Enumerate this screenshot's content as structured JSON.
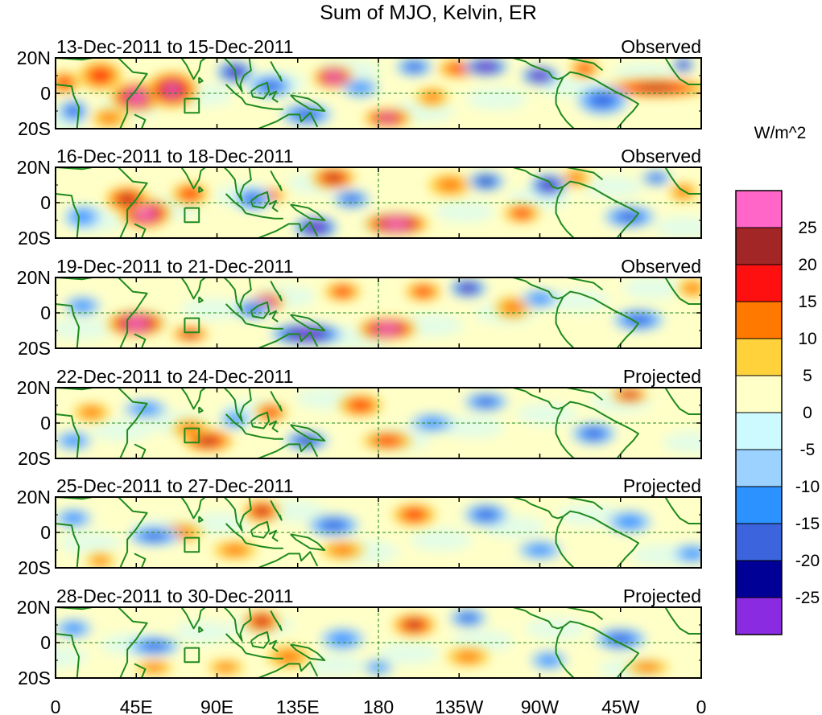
{
  "chart_data": {
    "type": "heatmap",
    "title": "Sum of MJO, Kelvin, ER",
    "units_label": "W/m^2",
    "x_ticks": [
      "0",
      "45E",
      "90E",
      "135E",
      "180",
      "135W",
      "90W",
      "45W",
      "0"
    ],
    "y_ticks": [
      "20N",
      "0",
      "20S"
    ],
    "x_range_deg": [
      0,
      360
    ],
    "y_range_deg": [
      -20,
      20
    ],
    "colorbar": {
      "levels": [
        -25,
        -20,
        -15,
        -10,
        -5,
        0,
        5,
        10,
        15,
        20,
        25
      ],
      "labels": [
        "25",
        "20",
        "15",
        "10",
        "5",
        "0",
        "-5",
        "-10",
        "-15",
        "-20",
        "-25"
      ],
      "colors": [
        "#ff66c8",
        "#a32626",
        "#ff1010",
        "#ff7800",
        "#ffd23c",
        "#ffffc8",
        "#cdfaff",
        "#9bd2ff",
        "#2b92ff",
        "#3c64dc",
        "#000096",
        "#8a2be2"
      ]
    },
    "panels": [
      {
        "date_label": "13-Dec-2011 to 15-Dec-2011",
        "kind": "Observed",
        "anomalies": [
          {
            "lon": 45,
            "lat": -2,
            "rlon": 14,
            "rlat": 8,
            "value": 30
          },
          {
            "lon": 65,
            "lat": 2,
            "rlon": 14,
            "rlat": 10,
            "value": 22
          },
          {
            "lon": 25,
            "lat": 10,
            "rlon": 12,
            "rlat": 8,
            "value": 12
          },
          {
            "lon": 5,
            "lat": 6,
            "rlon": 8,
            "rlat": 6,
            "value": 14
          },
          {
            "lon": 30,
            "lat": -14,
            "rlon": 10,
            "rlat": 5,
            "value": 10
          },
          {
            "lon": 155,
            "lat": 9,
            "rlon": 11,
            "rlat": 6,
            "value": 26
          },
          {
            "lon": 185,
            "lat": -14,
            "rlon": 13,
            "rlat": 5,
            "value": 24
          },
          {
            "lon": 210,
            "lat": -2,
            "rlon": 9,
            "rlat": 5,
            "value": 10
          },
          {
            "lon": 225,
            "lat": 14,
            "rlon": 12,
            "rlat": 5,
            "value": 12
          },
          {
            "lon": 335,
            "lat": 3,
            "rlon": 30,
            "rlat": 5,
            "value": 18
          },
          {
            "lon": 295,
            "lat": 14,
            "rlon": 8,
            "rlat": 5,
            "value": 15
          },
          {
            "lon": 100,
            "lat": 12,
            "rlon": 10,
            "rlat": 6,
            "value": -22
          },
          {
            "lon": 120,
            "lat": 4,
            "rlon": 12,
            "rlat": 6,
            "value": -15
          },
          {
            "lon": 140,
            "lat": -12,
            "rlon": 14,
            "rlat": 6,
            "value": -12
          },
          {
            "lon": 200,
            "lat": 15,
            "rlon": 10,
            "rlat": 5,
            "value": -12
          },
          {
            "lon": 240,
            "lat": 15,
            "rlon": 12,
            "rlat": 5,
            "value": -30
          },
          {
            "lon": 270,
            "lat": 10,
            "rlon": 10,
            "rlat": 5,
            "value": -28
          },
          {
            "lon": 305,
            "lat": -4,
            "rlon": 14,
            "rlat": 8,
            "value": -12
          },
          {
            "lon": 10,
            "lat": -10,
            "rlon": 8,
            "rlat": 6,
            "value": -12
          },
          {
            "lon": 350,
            "lat": 16,
            "rlon": 6,
            "rlat": 4,
            "value": -22
          },
          {
            "lon": 170,
            "lat": 3,
            "rlon": 10,
            "rlat": 5,
            "value": -8
          }
        ]
      },
      {
        "date_label": "16-Dec-2011 to 18-Dec-2011",
        "kind": "Observed",
        "anomalies": [
          {
            "lon": 50,
            "lat": -6,
            "rlon": 14,
            "rlat": 8,
            "value": 30
          },
          {
            "lon": 40,
            "lat": 2,
            "rlon": 12,
            "rlat": 7,
            "value": 18
          },
          {
            "lon": 75,
            "lat": 5,
            "rlon": 10,
            "rlat": 6,
            "value": 12
          },
          {
            "lon": 190,
            "lat": -12,
            "rlon": 18,
            "rlat": 6,
            "value": 30
          },
          {
            "lon": 155,
            "lat": 14,
            "rlon": 12,
            "rlat": 6,
            "value": 16
          },
          {
            "lon": 120,
            "lat": 4,
            "rlon": 8,
            "rlat": 4,
            "value": 14
          },
          {
            "lon": 220,
            "lat": 10,
            "rlon": 12,
            "rlat": 6,
            "value": 8
          },
          {
            "lon": 260,
            "lat": -6,
            "rlon": 10,
            "rlat": 5,
            "value": 12
          },
          {
            "lon": 290,
            "lat": 14,
            "rlon": 8,
            "rlat": 5,
            "value": 10
          },
          {
            "lon": 350,
            "lat": 6,
            "rlon": 8,
            "rlat": 5,
            "value": 10
          },
          {
            "lon": 145,
            "lat": -14,
            "rlon": 12,
            "rlat": 6,
            "value": -30
          },
          {
            "lon": 110,
            "lat": 2,
            "rlon": 10,
            "rlat": 6,
            "value": -14
          },
          {
            "lon": 165,
            "lat": 2,
            "rlon": 10,
            "rlat": 5,
            "value": -12
          },
          {
            "lon": 240,
            "lat": 12,
            "rlon": 10,
            "rlat": 5,
            "value": -16
          },
          {
            "lon": 275,
            "lat": 10,
            "rlon": 10,
            "rlat": 6,
            "value": -22
          },
          {
            "lon": 320,
            "lat": -8,
            "rlon": 14,
            "rlat": 6,
            "value": -14
          },
          {
            "lon": 15,
            "lat": -8,
            "rlon": 10,
            "rlat": 6,
            "value": -10
          },
          {
            "lon": 335,
            "lat": 14,
            "rlon": 8,
            "rlat": 4,
            "value": -12
          }
        ]
      },
      {
        "date_label": "19-Dec-2011 to 21-Dec-2011",
        "kind": "Observed",
        "anomalies": [
          {
            "lon": 45,
            "lat": -6,
            "rlon": 16,
            "rlat": 7,
            "value": 26
          },
          {
            "lon": 75,
            "lat": -12,
            "rlon": 10,
            "rlat": 4,
            "value": 16
          },
          {
            "lon": 185,
            "lat": -9,
            "rlon": 16,
            "rlat": 6,
            "value": 26
          },
          {
            "lon": 160,
            "lat": 12,
            "rlon": 10,
            "rlat": 5,
            "value": 14
          },
          {
            "lon": 118,
            "lat": 6,
            "rlon": 9,
            "rlat": 5,
            "value": 22
          },
          {
            "lon": 205,
            "lat": 12,
            "rlon": 10,
            "rlat": 5,
            "value": 14
          },
          {
            "lon": 255,
            "lat": 3,
            "rlon": 10,
            "rlat": 6,
            "value": 10
          },
          {
            "lon": 355,
            "lat": 14,
            "rlon": 8,
            "rlat": 5,
            "value": 10
          },
          {
            "lon": 140,
            "lat": -12,
            "rlon": 20,
            "rlat": 6,
            "value": -30
          },
          {
            "lon": 110,
            "lat": 2,
            "rlon": 10,
            "rlat": 5,
            "value": -14
          },
          {
            "lon": 230,
            "lat": 14,
            "rlon": 10,
            "rlat": 5,
            "value": -24
          },
          {
            "lon": 270,
            "lat": 8,
            "rlon": 10,
            "rlat": 5,
            "value": -10
          },
          {
            "lon": 325,
            "lat": -4,
            "rlon": 14,
            "rlat": 6,
            "value": -14
          },
          {
            "lon": 15,
            "lat": 4,
            "rlon": 10,
            "rlat": 5,
            "value": -8
          }
        ]
      },
      {
        "date_label": "22-Dec-2011 to 24-Dec-2011",
        "kind": "Projected",
        "anomalies": [
          {
            "lon": 85,
            "lat": -10,
            "rlon": 14,
            "rlat": 6,
            "value": 20
          },
          {
            "lon": 75,
            "lat": -3,
            "rlon": 10,
            "rlat": 5,
            "value": 8
          },
          {
            "lon": 185,
            "lat": -10,
            "rlon": 14,
            "rlat": 5,
            "value": 12
          },
          {
            "lon": 170,
            "lat": 10,
            "rlon": 12,
            "rlat": 6,
            "value": 12
          },
          {
            "lon": 120,
            "lat": 6,
            "rlon": 9,
            "rlat": 5,
            "value": 12
          },
          {
            "lon": 320,
            "lat": 16,
            "rlon": 10,
            "rlat": 4,
            "value": 16
          },
          {
            "lon": 20,
            "lat": 6,
            "rlon": 10,
            "rlat": 5,
            "value": 8
          },
          {
            "lon": 140,
            "lat": -10,
            "rlon": 12,
            "rlat": 5,
            "value": -16
          },
          {
            "lon": 50,
            "lat": 8,
            "rlon": 12,
            "rlat": 5,
            "value": -8
          },
          {
            "lon": 240,
            "lat": 12,
            "rlon": 12,
            "rlat": 5,
            "value": -15
          },
          {
            "lon": 210,
            "lat": 0,
            "rlon": 12,
            "rlat": 5,
            "value": -8
          },
          {
            "lon": 300,
            "lat": -6,
            "rlon": 12,
            "rlat": 6,
            "value": -12
          },
          {
            "lon": 10,
            "lat": -10,
            "rlon": 10,
            "rlat": 5,
            "value": -8
          },
          {
            "lon": 100,
            "lat": 2,
            "rlon": 8,
            "rlat": 5,
            "value": -6
          }
        ]
      },
      {
        "date_label": "25-Dec-2011 to 27-Dec-2011",
        "kind": "Projected",
        "anomalies": [
          {
            "lon": 115,
            "lat": 12,
            "rlon": 10,
            "rlat": 6,
            "value": 18
          },
          {
            "lon": 200,
            "lat": 10,
            "rlon": 12,
            "rlat": 6,
            "value": 14
          },
          {
            "lon": 100,
            "lat": -10,
            "rlon": 12,
            "rlat": 5,
            "value": 8
          },
          {
            "lon": 25,
            "lat": -16,
            "rlon": 8,
            "rlat": 4,
            "value": 10
          },
          {
            "lon": 160,
            "lat": -10,
            "rlon": 12,
            "rlat": 5,
            "value": 6
          },
          {
            "lon": 70,
            "lat": 0,
            "rlon": 12,
            "rlat": 5,
            "value": 6
          },
          {
            "lon": 55,
            "lat": -2,
            "rlon": 14,
            "rlat": 5,
            "value": -14
          },
          {
            "lon": 155,
            "lat": 4,
            "rlon": 14,
            "rlat": 6,
            "value": -12
          },
          {
            "lon": 240,
            "lat": 10,
            "rlon": 12,
            "rlat": 6,
            "value": -14
          },
          {
            "lon": 270,
            "lat": -10,
            "rlon": 12,
            "rlat": 5,
            "value": -10
          },
          {
            "lon": 320,
            "lat": 6,
            "rlon": 12,
            "rlat": 6,
            "value": -8
          },
          {
            "lon": 10,
            "lat": 8,
            "rlon": 10,
            "rlat": 5,
            "value": -6
          },
          {
            "lon": 355,
            "lat": -12,
            "rlon": 10,
            "rlat": 5,
            "value": -6
          }
        ]
      },
      {
        "date_label": "28-Dec-2011 to 30-Dec-2011",
        "kind": "Projected",
        "anomalies": [
          {
            "lon": 115,
            "lat": 12,
            "rlon": 10,
            "rlat": 6,
            "value": 20
          },
          {
            "lon": 200,
            "lat": 10,
            "rlon": 12,
            "rlat": 6,
            "value": 18
          },
          {
            "lon": 130,
            "lat": -8,
            "rlon": 12,
            "rlat": 6,
            "value": 10
          },
          {
            "lon": 95,
            "lat": -14,
            "rlon": 10,
            "rlat": 4,
            "value": 8
          },
          {
            "lon": 55,
            "lat": -14,
            "rlon": 10,
            "rlat": 4,
            "value": 8
          },
          {
            "lon": 230,
            "lat": -8,
            "rlon": 12,
            "rlat": 5,
            "value": 6
          },
          {
            "lon": 330,
            "lat": -14,
            "rlon": 12,
            "rlat": 4,
            "value": 6
          },
          {
            "lon": 55,
            "lat": -2,
            "rlon": 14,
            "rlat": 5,
            "value": -14
          },
          {
            "lon": 160,
            "lat": 2,
            "rlon": 12,
            "rlat": 6,
            "value": -10
          },
          {
            "lon": 230,
            "lat": 14,
            "rlon": 10,
            "rlat": 5,
            "value": -12
          },
          {
            "lon": 315,
            "lat": 2,
            "rlon": 14,
            "rlat": 6,
            "value": -14
          },
          {
            "lon": 275,
            "lat": -10,
            "rlon": 10,
            "rlat": 5,
            "value": -8
          },
          {
            "lon": 180,
            "lat": -14,
            "rlon": 8,
            "rlat": 4,
            "value": -10
          },
          {
            "lon": 10,
            "lat": 8,
            "rlon": 10,
            "rlat": 5,
            "value": -6
          }
        ]
      }
    ]
  }
}
